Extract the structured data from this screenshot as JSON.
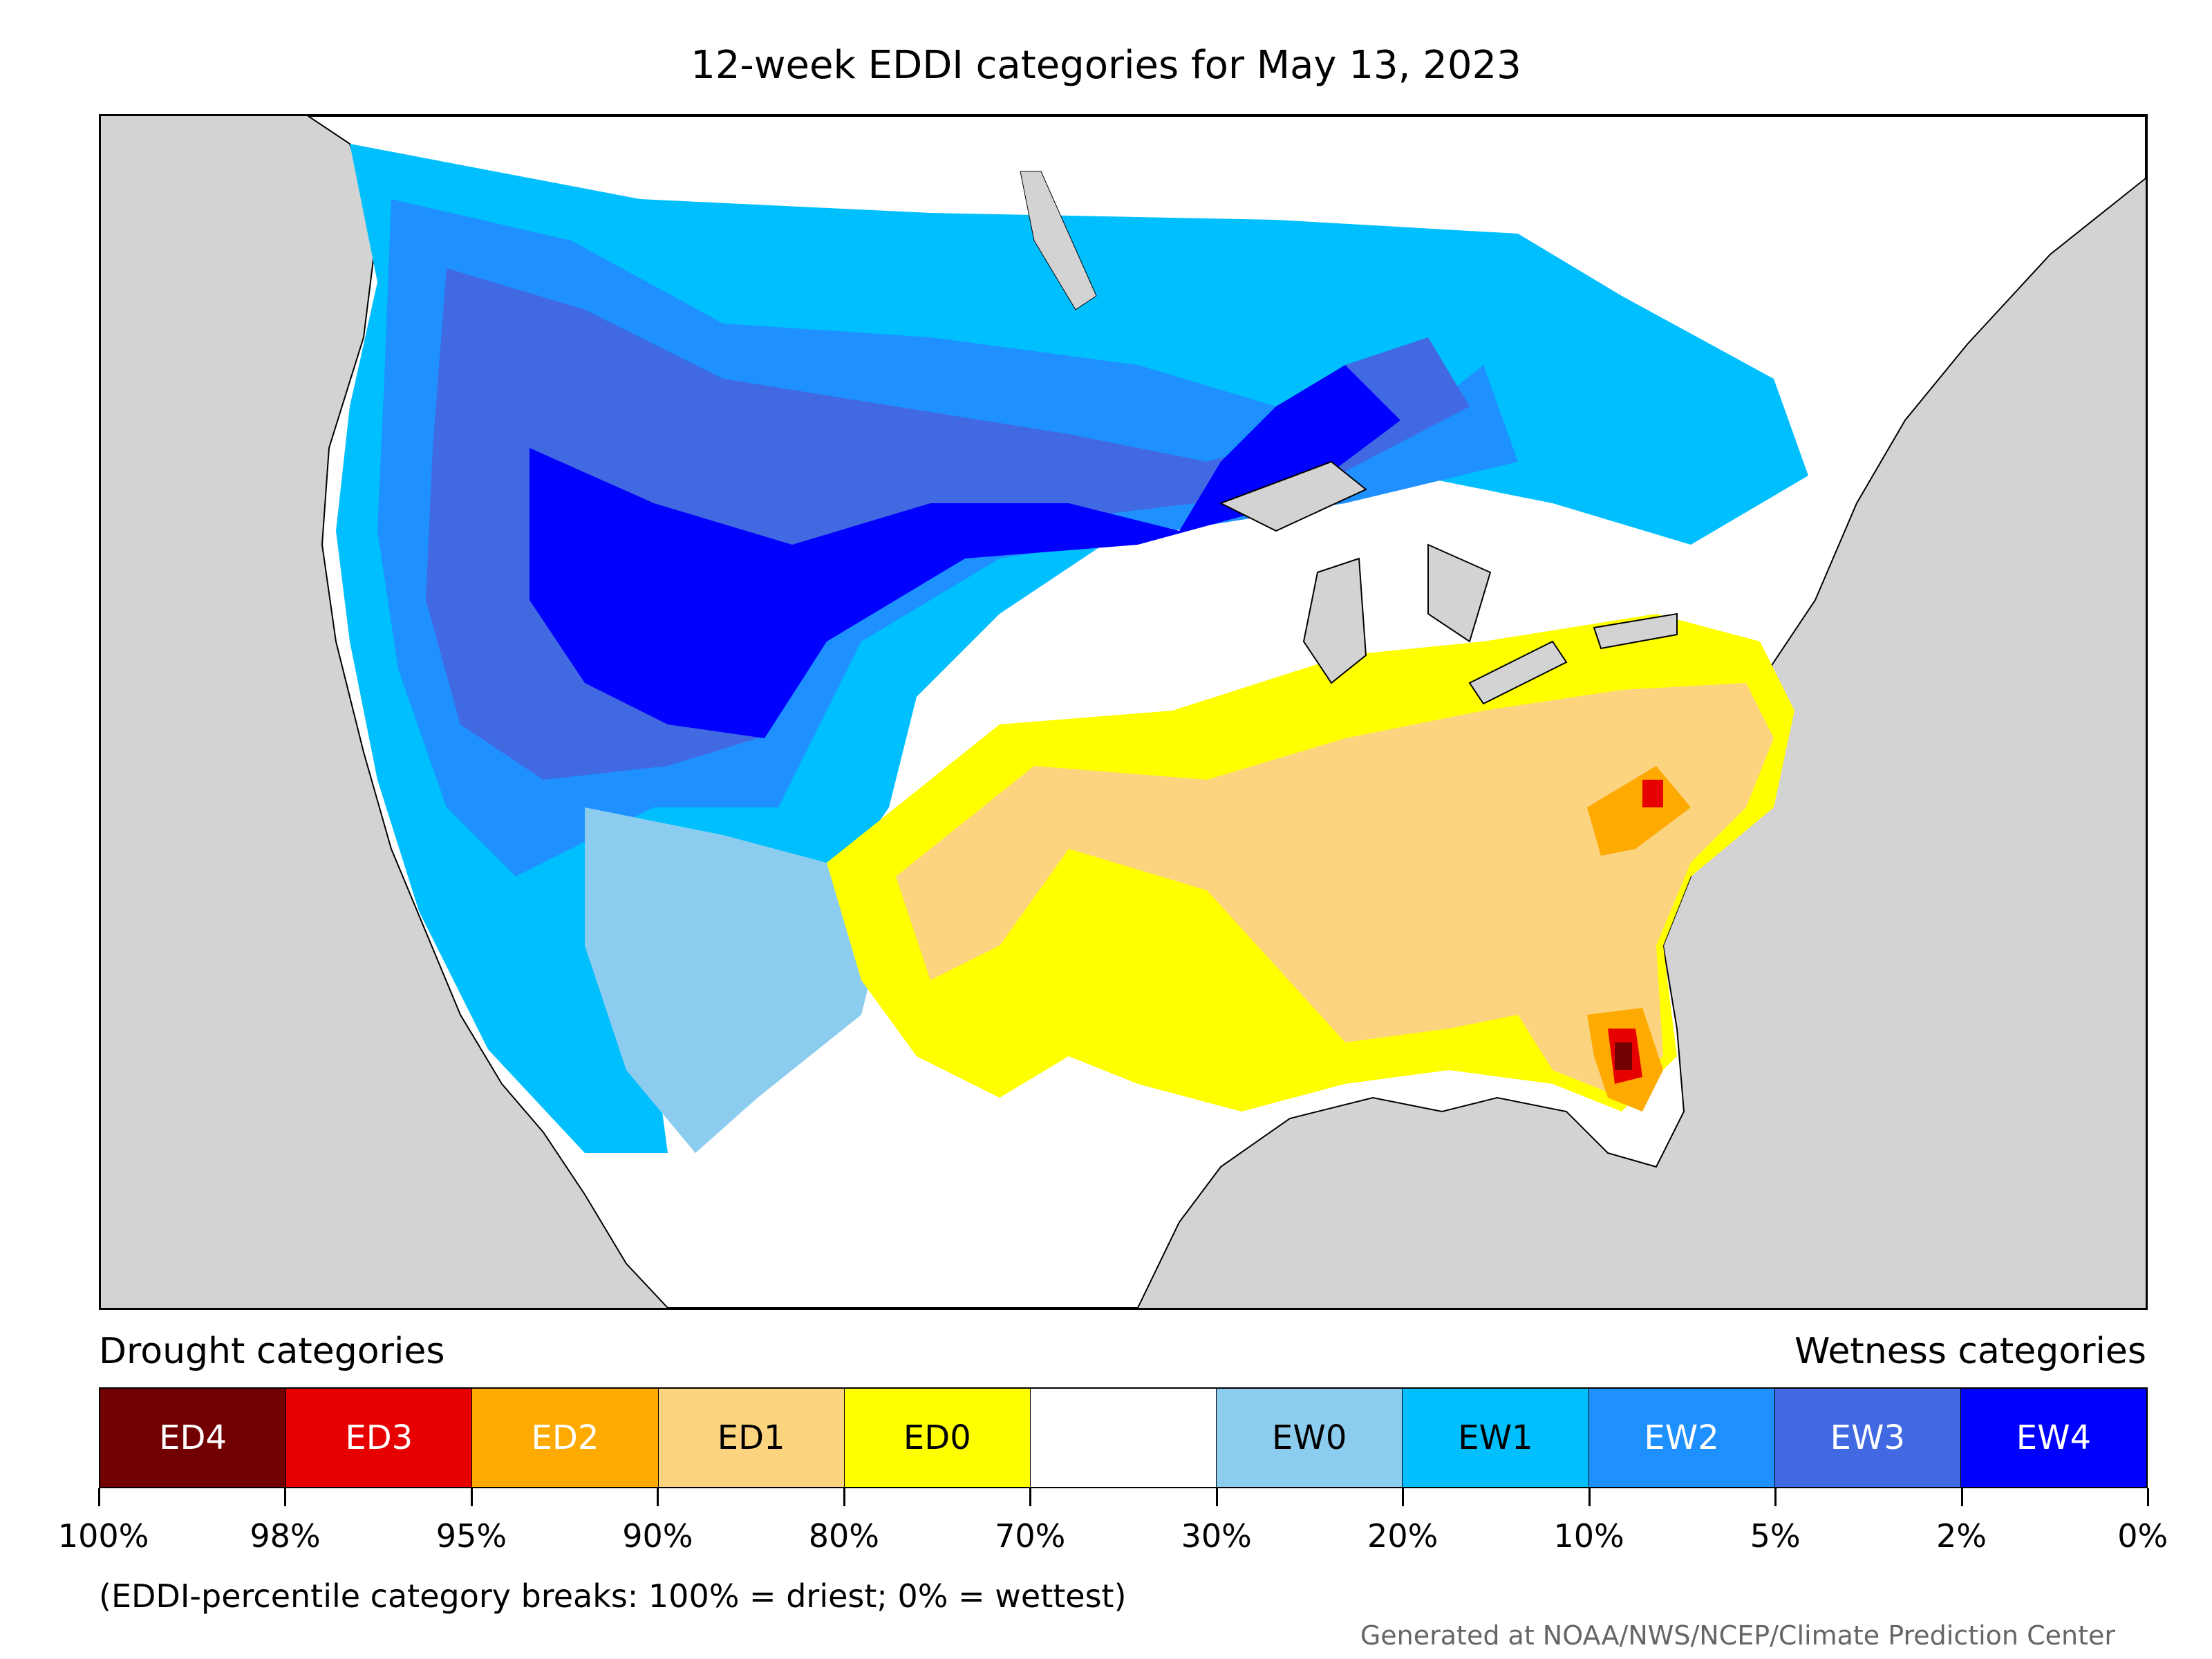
{
  "title": "12-week EDDI categories for May 13, 2023",
  "map": {
    "region": "Contiguous United States and surrounding North America",
    "colors": {
      "ocean_outside": "#d3d3d3",
      "no_category": "#ffffff",
      "ED4": "#730000",
      "ED3": "#e60000",
      "ED2": "#ffaa00",
      "ED1": "#fcd37f",
      "ED0": "#ffff00",
      "EW0": "#8ccdef",
      "EW1": "#00bfff",
      "EW2": "#1e90ff",
      "EW3": "#4169e1",
      "EW4": "#0000ff"
    }
  },
  "legend": {
    "drought_label": "Drought categories",
    "wetness_label": "Wetness categories",
    "categories": [
      {
        "label": "ED4",
        "color": "#730000",
        "text_color": "#ffffff"
      },
      {
        "label": "ED3",
        "color": "#e60000",
        "text_color": "#ffffff"
      },
      {
        "label": "ED2",
        "color": "#ffaa00",
        "text_color": "#ffffff"
      },
      {
        "label": "ED1",
        "color": "#fcd37f",
        "text_color": "#000000"
      },
      {
        "label": "ED0",
        "color": "#ffff00",
        "text_color": "#000000"
      },
      {
        "label": "",
        "color": "#ffffff",
        "text_color": "#000000"
      },
      {
        "label": "EW0",
        "color": "#8ccdef",
        "text_color": "#000000"
      },
      {
        "label": "EW1",
        "color": "#00bfff",
        "text_color": "#000000"
      },
      {
        "label": "EW2",
        "color": "#1e90ff",
        "text_color": "#ffffff"
      },
      {
        "label": "EW3",
        "color": "#4169e1",
        "text_color": "#ffffff"
      },
      {
        "label": "EW4",
        "color": "#0000ff",
        "text_color": "#ffffff"
      }
    ],
    "tick_labels": [
      "100%",
      "98%",
      "95%",
      "90%",
      "80%",
      "70%",
      "30%",
      "20%",
      "10%",
      "5%",
      "2%",
      "0%"
    ]
  },
  "note": "(EDDI-percentile category breaks: 100% = driest; 0% = wettest)",
  "credit": "Generated at NOAA/NWS/NCEP/Climate Prediction Center"
}
